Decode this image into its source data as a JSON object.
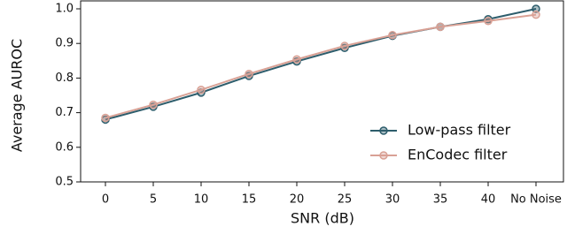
{
  "chart_data": {
    "type": "line",
    "x_label": "SNR (dB)",
    "y_label": "Average AUROC",
    "categories": [
      "0",
      "5",
      "10",
      "15",
      "20",
      "25",
      "30",
      "35",
      "40",
      "No Noise"
    ],
    "series": [
      {
        "name": "Low-pass filter",
        "color": "#2d5d6c",
        "values": [
          0.68,
          0.717,
          0.758,
          0.806,
          0.848,
          0.887,
          0.922,
          0.948,
          0.97,
          1.0
        ]
      },
      {
        "name": "EnCodec filter",
        "color": "#d9a195",
        "values": [
          0.685,
          0.723,
          0.766,
          0.812,
          0.854,
          0.893,
          0.924,
          0.948,
          0.965,
          0.983
        ]
      }
    ],
    "ylim": [
      0.5,
      1.0
    ],
    "yticks": [
      0.5,
      0.6,
      0.7,
      0.8,
      0.9,
      {
        "value": 1.0,
        "label": "1.0"
      }
    ],
    "legend": "lower right"
  }
}
